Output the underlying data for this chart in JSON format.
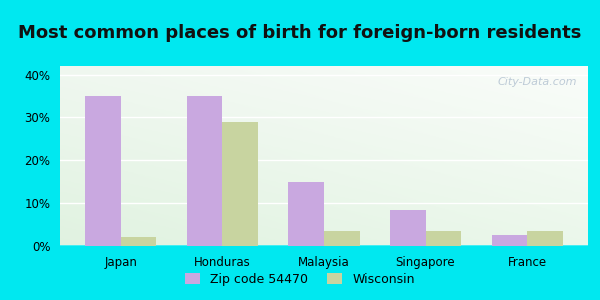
{
  "title": "Most common places of birth for foreign-born residents",
  "categories": [
    "Japan",
    "Honduras",
    "Malaysia",
    "Singapore",
    "France"
  ],
  "zip_values": [
    35,
    35,
    15,
    8.5,
    2.5
  ],
  "wi_values": [
    2,
    29,
    3.5,
    3.5,
    3.5
  ],
  "zip_color": "#c9a8e0",
  "wi_color": "#c8d4a0",
  "zip_label": "Zip code 54470",
  "wi_label": "Wisconsin",
  "ylim": [
    0,
    42
  ],
  "yticks": [
    0,
    10,
    20,
    30,
    40
  ],
  "ytick_labels": [
    "0%",
    "10%",
    "20%",
    "30%",
    "40%"
  ],
  "bar_width": 0.35,
  "outer_bg": "#00e8f0",
  "title_fontsize": 13,
  "watermark": "City-Data.com"
}
